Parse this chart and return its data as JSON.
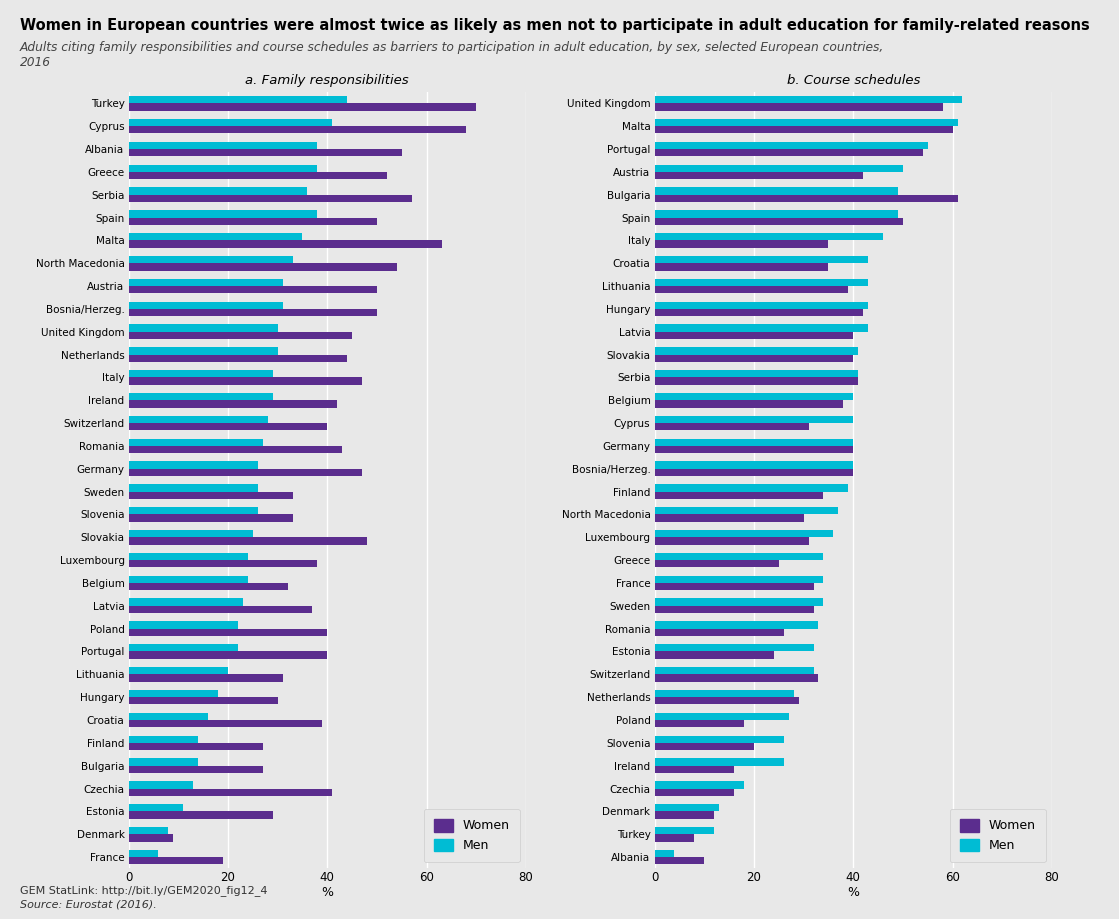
{
  "title": "Women in European countries were almost twice as likely as men not to participate in adult education for family-related reasons",
  "subtitle": "Adults citing family responsibilities and course schedules as barriers to participation in adult education, by sex, selected European countries,\n2016",
  "source_line1": "GEM StatLink: http://bit.ly/GEM2020_fig12_4",
  "source_line2": "Source: Eurostat (2016).",
  "bg_color": "#e8e8e8",
  "women_color": "#5b2d8e",
  "men_color": "#00bcd4",
  "panel_a_title": "a. Family responsibilities",
  "panel_b_title": "b. Course schedules",
  "panel_a": {
    "countries": [
      "Turkey",
      "Cyprus",
      "Albania",
      "Greece",
      "Serbia",
      "Spain",
      "Malta",
      "North Macedonia",
      "Austria",
      "Bosnia/Herzeg.",
      "United Kingdom",
      "Netherlands",
      "Italy",
      "Ireland",
      "Switzerland",
      "Romania",
      "Germany",
      "Sweden",
      "Slovenia",
      "Slovakia",
      "Luxembourg",
      "Belgium",
      "Latvia",
      "Poland",
      "Portugal",
      "Lithuania",
      "Hungary",
      "Croatia",
      "Finland",
      "Bulgaria",
      "Czechia",
      "Estonia",
      "Denmark",
      "France"
    ],
    "women": [
      70,
      68,
      55,
      52,
      57,
      50,
      63,
      54,
      50,
      50,
      45,
      44,
      47,
      42,
      40,
      43,
      47,
      33,
      33,
      48,
      38,
      32,
      37,
      40,
      40,
      31,
      30,
      39,
      27,
      27,
      41,
      29,
      9,
      19
    ],
    "men": [
      44,
      41,
      38,
      38,
      36,
      38,
      35,
      33,
      31,
      31,
      30,
      30,
      29,
      29,
      28,
      27,
      26,
      26,
      26,
      25,
      24,
      24,
      23,
      22,
      22,
      20,
      18,
      16,
      14,
      14,
      13,
      11,
      8,
      6
    ]
  },
  "panel_b": {
    "countries": [
      "United Kingdom",
      "Malta",
      "Portugal",
      "Austria",
      "Bulgaria",
      "Spain",
      "Italy",
      "Croatia",
      "Lithuania",
      "Hungary",
      "Latvia",
      "Slovakia",
      "Serbia",
      "Belgium",
      "Cyprus",
      "Germany",
      "Bosnia/Herzeg.",
      "Finland",
      "North Macedonia",
      "Luxembourg",
      "Greece",
      "France",
      "Sweden",
      "Romania",
      "Estonia",
      "Switzerland",
      "Netherlands",
      "Poland",
      "Slovenia",
      "Ireland",
      "Czechia",
      "Denmark",
      "Turkey",
      "Albania"
    ],
    "women": [
      58,
      60,
      54,
      42,
      61,
      50,
      35,
      35,
      39,
      42,
      40,
      40,
      41,
      38,
      31,
      40,
      40,
      34,
      30,
      31,
      25,
      32,
      32,
      26,
      24,
      33,
      29,
      18,
      20,
      16,
      16,
      12,
      8,
      10
    ],
    "men": [
      62,
      61,
      55,
      50,
      49,
      49,
      46,
      43,
      43,
      43,
      43,
      41,
      41,
      40,
      40,
      40,
      40,
      39,
      37,
      36,
      34,
      34,
      34,
      33,
      32,
      32,
      28,
      27,
      26,
      26,
      18,
      13,
      12,
      4
    ]
  },
  "xlim": [
    0,
    80
  ],
  "xticks": [
    0,
    20,
    40,
    60,
    80
  ]
}
